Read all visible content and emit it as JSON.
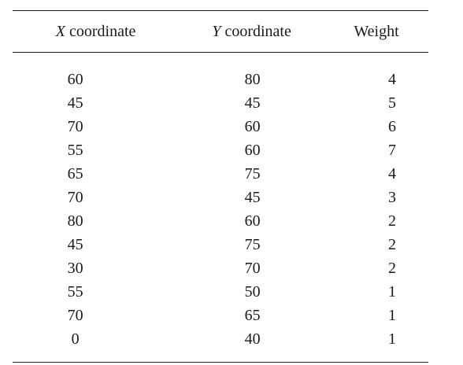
{
  "table": {
    "headers": {
      "x_var": "X",
      "x_rest": " coordinate",
      "y_var": "Y",
      "y_rest": " coordinate",
      "weight": "Weight"
    },
    "rows": [
      {
        "x": "60",
        "y": "80",
        "w": "4"
      },
      {
        "x": "45",
        "y": "45",
        "w": "5"
      },
      {
        "x": "70",
        "y": "60",
        "w": "6"
      },
      {
        "x": "55",
        "y": "60",
        "w": "7"
      },
      {
        "x": "65",
        "y": "75",
        "w": "4"
      },
      {
        "x": "70",
        "y": "45",
        "w": "3"
      },
      {
        "x": "80",
        "y": "60",
        "w": "2"
      },
      {
        "x": "45",
        "y": "75",
        "w": "2"
      },
      {
        "x": "30",
        "y": "70",
        "w": "2"
      },
      {
        "x": "55",
        "y": "50",
        "w": "1"
      },
      {
        "x": "70",
        "y": "65",
        "w": "1"
      },
      {
        "x": "0",
        "y": "40",
        "w": "1"
      }
    ]
  }
}
